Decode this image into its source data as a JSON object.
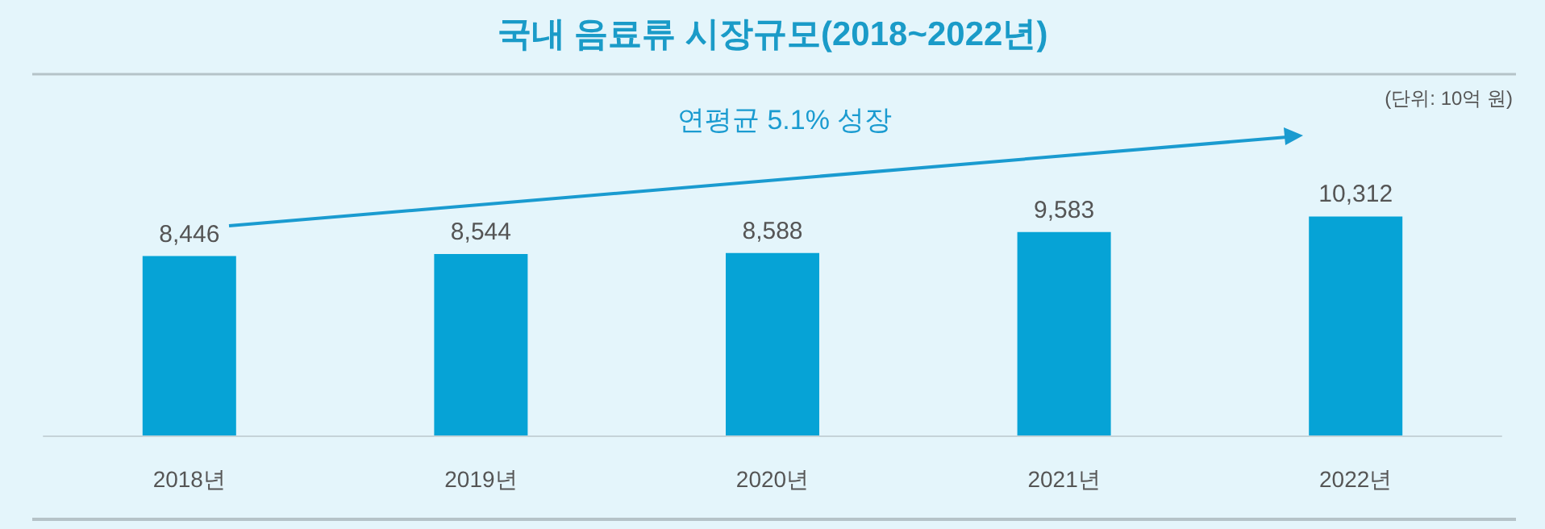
{
  "chart_data": {
    "type": "bar",
    "title": "국내 음료류 시장규모(2018~2022년)",
    "categories": [
      "2018년",
      "2019년",
      "2020년",
      "2021년",
      "2022년"
    ],
    "values": [
      8446,
      8544,
      8588,
      9583,
      10312
    ],
    "color": "#06a3d6",
    "value_labels": [
      "8,446",
      "8,544",
      "8,588",
      "9,583",
      "10,312"
    ],
    "annotations": [
      "연평균 5.1% 성장",
      "(단위: 10억 원)"
    ]
  }
}
